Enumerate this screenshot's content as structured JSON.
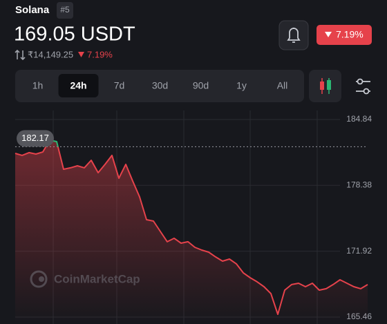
{
  "header": {
    "name": "Solana",
    "rank": "#5",
    "price": "169.05 USDT",
    "fiat_price": "₹14,149.25",
    "change": "7.19%",
    "badge_change": "7.19%"
  },
  "tabs": [
    "1h",
    "24h",
    "7d",
    "30d",
    "90d",
    "1y",
    "All"
  ],
  "selected_tab": 1,
  "chart_data": {
    "type": "area",
    "watermark": "CoinMarketCap",
    "series": [
      {
        "color": "#e6424b",
        "up_color": "#2bb673",
        "values": [
          181.52,
          181.32,
          181.59,
          181.45,
          181.66,
          182.81,
          182.67,
          179.96,
          180.1,
          180.3,
          180.1,
          180.84,
          179.62,
          180.44,
          181.32,
          179.08,
          180.44,
          178.81,
          177.25,
          175.01,
          174.88,
          173.86,
          172.85,
          173.19,
          172.71,
          172.85,
          172.3,
          172.03,
          171.83,
          171.36,
          170.95,
          171.15,
          170.68,
          169.8,
          169.32,
          168.92,
          168.44,
          167.76,
          165.73,
          168.1,
          168.65,
          168.78,
          168.44,
          168.78,
          168.1,
          168.24,
          168.65,
          169.12,
          168.78,
          168.44,
          168.24,
          168.65
        ]
      }
    ],
    "reference": 182.17,
    "ylim": [
      164.78,
      185.72
    ],
    "yticks": [
      165.46,
      171.92,
      178.38,
      184.84
    ],
    "grid": true
  }
}
